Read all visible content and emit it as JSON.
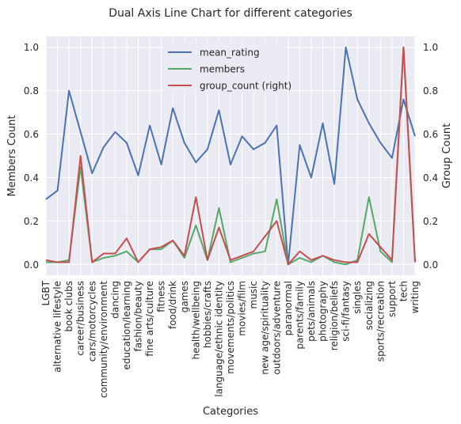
{
  "chart_data": {
    "type": "line",
    "title": "Dual Axis Line Chart for different categories",
    "xlabel": "Categories",
    "ylabel": "Members Count",
    "ylabel_right": "Group Count",
    "ylim": [
      -0.05,
      1.05
    ],
    "ylim_right": [
      -0.05,
      1.05
    ],
    "yticks": [
      "0.0",
      "0.2",
      "0.4",
      "0.6",
      "0.8",
      "1.0"
    ],
    "yticks_right": [
      "0.0",
      "0.2",
      "0.4",
      "0.6",
      "0.8",
      "1.0"
    ],
    "grid": true,
    "legend_position": "top-center",
    "categories": [
      "LGBT",
      "alternative lifestyle",
      "book clubs",
      "career/business",
      "cars/motorcycles",
      "community/environment",
      "dancing",
      "education/learning",
      "fashion/beauty",
      "fine arts/culture",
      "fitness",
      "food/drink",
      "games",
      "health/wellbeing",
      "hobbies/crafts",
      "language/ethnic identity",
      "movements/politics",
      "movies/film",
      "music",
      "new age/spirituality",
      "outdoors/adventure",
      "paranormal",
      "parents/family",
      "pets/animals",
      "photography",
      "religion/beliefs",
      "sci-fi/fantasy",
      "singles",
      "socializing",
      "sports/recreation",
      "support",
      "tech",
      "writing"
    ],
    "series": [
      {
        "name": "mean_rating",
        "axis": "left",
        "color": "#4c72b0",
        "values": [
          0.3,
          0.34,
          0.8,
          0.61,
          0.42,
          0.54,
          0.61,
          0.56,
          0.41,
          0.64,
          0.46,
          0.72,
          0.56,
          0.47,
          0.53,
          0.71,
          0.46,
          0.59,
          0.53,
          0.56,
          0.64,
          0.0,
          0.55,
          0.4,
          0.65,
          0.37,
          1.0,
          0.76,
          0.65,
          0.56,
          0.49,
          0.76,
          0.59
        ]
      },
      {
        "name": "members",
        "axis": "left",
        "color": "#55a868",
        "values": [
          0.01,
          0.01,
          0.02,
          0.45,
          0.01,
          0.03,
          0.04,
          0.06,
          0.01,
          0.07,
          0.07,
          0.11,
          0.03,
          0.18,
          0.02,
          0.26,
          0.01,
          0.03,
          0.05,
          0.06,
          0.3,
          0.0,
          0.03,
          0.01,
          0.04,
          0.01,
          0.0,
          0.02,
          0.31,
          0.06,
          0.01,
          1.0,
          0.01
        ]
      },
      {
        "name": "group_count (right)",
        "axis": "right",
        "color": "#c44e52",
        "values": [
          0.02,
          0.01,
          0.01,
          0.5,
          0.01,
          0.05,
          0.05,
          0.12,
          0.01,
          0.07,
          0.08,
          0.11,
          0.04,
          0.31,
          0.02,
          0.17,
          0.02,
          0.04,
          0.06,
          0.13,
          0.2,
          0.0,
          0.06,
          0.02,
          0.04,
          0.02,
          0.01,
          0.01,
          0.14,
          0.08,
          0.02,
          1.0,
          0.01
        ]
      }
    ]
  }
}
